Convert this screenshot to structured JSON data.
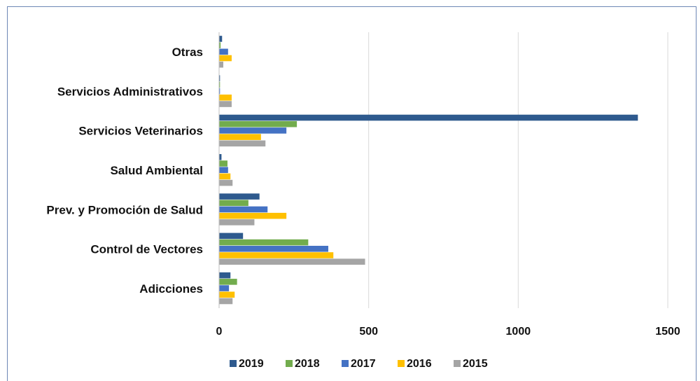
{
  "chart_data": {
    "type": "bar",
    "orientation": "horizontal",
    "categories": [
      "Otras",
      "Servicios Administrativos",
      "Servicios Veterinarios",
      "Salud Ambiental",
      "Prev. y Promoción de Salud",
      "Control de Vectores",
      "Adicciones"
    ],
    "series": [
      {
        "name": "2019",
        "color": "#2e5a8e",
        "values": [
          10,
          3,
          1400,
          8,
          135,
          80,
          38
        ]
      },
      {
        "name": "2018",
        "color": "#72ac4d",
        "values": [
          5,
          3,
          260,
          28,
          98,
          298,
          60
        ]
      },
      {
        "name": "2017",
        "color": "#4472c4",
        "values": [
          30,
          3,
          225,
          30,
          162,
          365,
          33
        ]
      },
      {
        "name": "2016",
        "color": "#ffc000",
        "values": [
          42,
          42,
          140,
          38,
          225,
          382,
          52
        ]
      },
      {
        "name": "2015",
        "color": "#a5a5a5",
        "values": [
          14,
          42,
          155,
          45,
          118,
          488,
          45
        ]
      }
    ],
    "legend_order": [
      "2019",
      "2018",
      "2017",
      "2016",
      "2015"
    ],
    "xlim": [
      0,
      1500
    ],
    "xticks": [
      0,
      500,
      1000,
      1500
    ],
    "tick_labels": [
      "0",
      "500",
      "1000",
      "1500"
    ],
    "grid": "vertical",
    "legend_position": "bottom"
  }
}
